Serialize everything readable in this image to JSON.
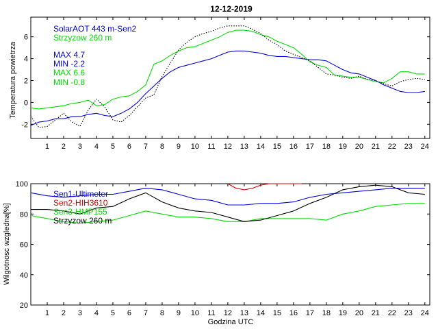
{
  "title": "12-12-2019",
  "colors": {
    "blue": "#0000dd",
    "green": "#00dd00",
    "red": "#dd0000",
    "black": "#000000"
  },
  "chart_data": [
    {
      "type": "line",
      "title": "12-12-2019",
      "ylabel": "Temperatura powietrza",
      "xlabel": "",
      "xlim": [
        0,
        24.3
      ],
      "ylim": [
        -3.3,
        7.8
      ],
      "xticks": [
        1,
        2,
        3,
        4,
        5,
        6,
        7,
        8,
        9,
        10,
        11,
        12,
        13,
        14,
        15,
        16,
        17,
        18,
        19,
        20,
        21,
        22,
        23,
        24
      ],
      "yticks": [
        -2,
        0,
        2,
        4,
        6
      ],
      "legend": [
        "SolarAOT 443 m-Sen2",
        "Strzyzow 260 m"
      ],
      "stats": [
        "MAX 4.7",
        "MIN -2.2",
        "MAX 6.6",
        "MIN -0.8"
      ],
      "series": [
        {
          "name": "SolarAOT 443 m-Sen2",
          "color": "blue",
          "style": "solid",
          "x": [
            0,
            0.5,
            1,
            1.5,
            2,
            2.5,
            3,
            3.5,
            4,
            4.5,
            5,
            5.5,
            6,
            6.5,
            7,
            7.5,
            8,
            8.5,
            9,
            9.5,
            10,
            10.5,
            11,
            11.5,
            12,
            12.5,
            13,
            13.5,
            14,
            14.5,
            15,
            15.5,
            16,
            16.5,
            17,
            17.5,
            18,
            18.5,
            19,
            19.5,
            20,
            20.5,
            21,
            21.5,
            22,
            22.5,
            23,
            23.5,
            24
          ],
          "values": [
            -2.1,
            -1.8,
            -1.7,
            -1.5,
            -1.5,
            -1.3,
            -1.3,
            -1.1,
            -1.0,
            -1.2,
            -1.3,
            -1.0,
            -0.6,
            0.0,
            0.8,
            1.5,
            2.2,
            2.8,
            3.2,
            3.4,
            3.6,
            3.8,
            4.0,
            4.3,
            4.6,
            4.7,
            4.7,
            4.6,
            4.5,
            4.3,
            4.2,
            4.2,
            4.1,
            4.0,
            3.9,
            3.9,
            3.8,
            3.4,
            3.0,
            2.7,
            2.6,
            2.3,
            2.0,
            1.6,
            1.3,
            1.0,
            0.9,
            0.9,
            1.0
          ]
        },
        {
          "name": "Strzyzow 260 m",
          "color": "green",
          "style": "solid",
          "x": [
            0,
            0.5,
            1,
            1.5,
            2,
            2.5,
            3,
            3.5,
            4,
            4.5,
            5,
            5.5,
            6,
            6.5,
            7,
            7.5,
            8,
            8.5,
            9,
            9.5,
            10,
            10.5,
            11,
            11.5,
            12,
            12.5,
            13,
            13.5,
            14,
            14.5,
            15,
            15.5,
            16,
            16.5,
            17,
            17.5,
            18,
            18.5,
            19,
            19.5,
            20,
            20.5,
            21,
            21.5,
            22,
            22.5,
            23,
            23.5,
            24
          ],
          "values": [
            -0.5,
            -0.6,
            -0.5,
            -0.4,
            -0.3,
            -0.1,
            0.0,
            0.2,
            -0.3,
            -0.2,
            0.3,
            0.5,
            0.6,
            1.0,
            1.6,
            3.5,
            3.8,
            4.3,
            4.7,
            5.0,
            5.1,
            5.4,
            5.7,
            6.0,
            6.4,
            6.6,
            6.6,
            6.5,
            6.2,
            6.0,
            5.6,
            5.3,
            5.0,
            4.4,
            3.7,
            3.4,
            3.2,
            2.5,
            2.4,
            2.3,
            2.3,
            2.1,
            1.9,
            1.8,
            2.2,
            2.8,
            2.8,
            2.6,
            2.6
          ]
        },
        {
          "name": "",
          "color": "black",
          "style": "dotted",
          "x": [
            0,
            0.5,
            1,
            1.5,
            2,
            2.5,
            3,
            3.5,
            4,
            4.5,
            5,
            5.5,
            6,
            6.5,
            7,
            7.5,
            8,
            8.5,
            9,
            9.5,
            10,
            10.5,
            11,
            11.5,
            12,
            12.5,
            13,
            13.5,
            14,
            14.5,
            15,
            15.5,
            16,
            16.5,
            17,
            17.5,
            18,
            18.5,
            19,
            19.5,
            20,
            20.5,
            21,
            21.5,
            22,
            22.5,
            23,
            23.5,
            24
          ],
          "values": [
            -1.3,
            -2.3,
            -2.2,
            -1.6,
            -1.0,
            -1.8,
            -2.2,
            -0.7,
            0.3,
            -0.4,
            -1.6,
            -1.8,
            -1.2,
            -0.4,
            0.4,
            0.7,
            2.4,
            3.6,
            4.8,
            5.5,
            6.0,
            6.3,
            6.5,
            6.8,
            7.0,
            7.0,
            7.0,
            6.7,
            6.3,
            5.7,
            5.3,
            4.7,
            4.4,
            4.1,
            3.8,
            3.2,
            2.6,
            2.5,
            2.3,
            2.2,
            2.4,
            2.1,
            2.0,
            1.7,
            1.5,
            1.9,
            2.1,
            2.2,
            2.1
          ]
        }
      ]
    },
    {
      "type": "line",
      "title": "",
      "ylabel": "Wilgotnosc wzgledna[%]",
      "xlabel": "Godzina UTC",
      "xlim": [
        0,
        24.3
      ],
      "ylim": [
        20,
        100
      ],
      "xticks": [
        1,
        2,
        3,
        4,
        5,
        6,
        7,
        8,
        9,
        10,
        11,
        12,
        13,
        14,
        15,
        16,
        17,
        18,
        19,
        20,
        21,
        22,
        23,
        24
      ],
      "yticks": [
        20,
        40,
        60,
        80,
        100
      ],
      "legend": [
        "Sen1-Ultimeter",
        "Sen2-HIH3610",
        "Sen3-HMP155",
        "Strzyzow 260 m"
      ],
      "series": [
        {
          "name": "Sen1-Ultimeter",
          "color": "blue",
          "style": "solid",
          "x": [
            0,
            1,
            2,
            3,
            4,
            5,
            6,
            7,
            8,
            9,
            10,
            11,
            12,
            13,
            14,
            15,
            16,
            17,
            18,
            19,
            20,
            21,
            22,
            23,
            24
          ],
          "values": [
            94,
            92,
            91,
            92,
            93,
            93,
            95,
            97,
            96,
            93,
            90,
            89,
            86,
            86,
            87,
            87,
            88,
            91,
            93,
            94,
            95,
            96,
            97,
            97,
            97
          ]
        },
        {
          "name": "Sen2-HIH3610",
          "color": "red",
          "style": "solid",
          "x": [
            12,
            12.5,
            13,
            13.5,
            14,
            14.5,
            15,
            15.5,
            16,
            16.5
          ],
          "values": [
            100,
            97,
            96,
            97,
            99,
            100,
            100,
            100,
            100,
            100
          ]
        },
        {
          "name": "Sen3-HMP155",
          "color": "green",
          "style": "solid",
          "x": [
            0,
            1,
            2,
            3,
            4,
            5,
            6,
            7,
            8,
            9,
            10,
            11,
            12,
            13,
            14,
            15,
            16,
            17,
            18,
            19,
            20,
            21,
            22,
            23,
            24
          ],
          "values": [
            79,
            77,
            75,
            74,
            75,
            76,
            79,
            82,
            80,
            78,
            78,
            77,
            75,
            75,
            77,
            77,
            77,
            77,
            76,
            80,
            82,
            85,
            86,
            87,
            87
          ]
        },
        {
          "name": "Strzyzow 260 m",
          "color": "black",
          "style": "solid",
          "x": [
            0,
            1,
            2,
            3,
            4,
            5,
            6,
            7,
            8,
            9,
            10,
            11,
            12,
            13,
            14,
            15,
            16,
            17,
            18,
            19,
            20,
            21,
            22,
            23,
            24
          ],
          "values": [
            83,
            83,
            82,
            80,
            84,
            85,
            90,
            94,
            88,
            84,
            82,
            81,
            78,
            75,
            76,
            79,
            82,
            87,
            91,
            96,
            98,
            99,
            98,
            94,
            93
          ]
        }
      ]
    }
  ]
}
